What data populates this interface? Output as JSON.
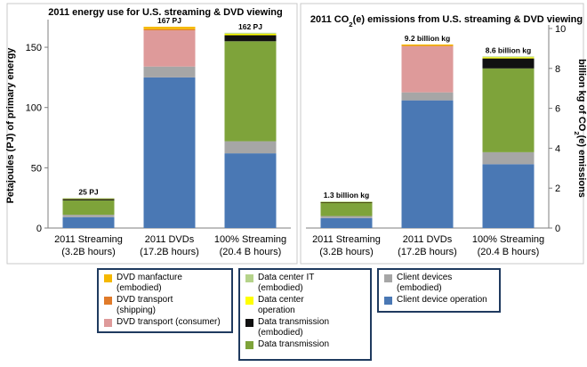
{
  "chart_data": [
    {
      "type": "bar",
      "stacked": true,
      "title": "2011 energy use for U.S. streaming & DVD viewing",
      "ylabel": "Petajoules (PJ) of primary energy",
      "ylim": [
        0,
        170
      ],
      "yticks": [
        0,
        50,
        100,
        150
      ],
      "grid": false,
      "categories": [
        "2011 Streaming\n(3.2B hours)",
        "2011 DVDs\n(17.2B hours)",
        "100% Streaming\n(20.4 B hours)"
      ],
      "totals_labels": [
        "25 PJ",
        "167 PJ",
        "162 PJ"
      ],
      "series": [
        {
          "key": "client_op",
          "values": [
            9,
            125,
            62
          ]
        },
        {
          "key": "client_emb",
          "values": [
            2,
            9,
            10
          ]
        },
        {
          "key": "data_trans",
          "values": [
            12,
            0,
            83
          ]
        },
        {
          "key": "data_trans_emb",
          "values": [
            1.2,
            0,
            5
          ]
        },
        {
          "key": "dc_op",
          "values": [
            0.4,
            0,
            1.2
          ]
        },
        {
          "key": "dc_it",
          "values": [
            0.2,
            0,
            0.8
          ]
        },
        {
          "key": "dvd_transport_consumer",
          "values": [
            0,
            30,
            0
          ]
        },
        {
          "key": "dvd_transport_shipping",
          "values": [
            0,
            1,
            0
          ]
        },
        {
          "key": "dvd_manufacture",
          "values": [
            0,
            2,
            0
          ]
        }
      ]
    },
    {
      "type": "bar",
      "stacked": true,
      "title_prefix": "2011 CO",
      "title_sub": "2",
      "title_suffix": "(e) emissions from U.S. streaming & DVD viewing",
      "ylabel_prefix": "billion kg of CO",
      "ylabel_sub": "2",
      "ylabel_suffix": "(e) emissions",
      "ylim": [
        0,
        10
      ],
      "yticks": [
        0,
        2,
        4,
        6,
        8,
        10
      ],
      "grid": false,
      "categories": [
        "2011 Streaming\n(3.2B hours)",
        "2011 DVDs\n(17.2B hours)",
        "100% Streaming\n(20.4 B hours)"
      ],
      "totals_labels": [
        "1.3 billion kg",
        "9.2 billion kg",
        "8.6 billion kg"
      ],
      "series": [
        {
          "key": "client_op",
          "values": [
            0.5,
            6.4,
            3.2
          ]
        },
        {
          "key": "client_emb",
          "values": [
            0.1,
            0.4,
            0.6
          ]
        },
        {
          "key": "data_trans",
          "values": [
            0.65,
            0,
            4.2
          ]
        },
        {
          "key": "data_trans_emb",
          "values": [
            0.05,
            0,
            0.5
          ]
        },
        {
          "key": "dc_op",
          "values": [
            0.02,
            0,
            0.06
          ]
        },
        {
          "key": "dc_it",
          "values": [
            0.01,
            0,
            0.04
          ]
        },
        {
          "key": "dvd_transport_consumer",
          "values": [
            0,
            2.3,
            0
          ]
        },
        {
          "key": "dvd_transport_shipping",
          "values": [
            0,
            0.04,
            0
          ]
        },
        {
          "key": "dvd_manufacture",
          "values": [
            0,
            0.06,
            0
          ]
        }
      ]
    }
  ],
  "series_info": {
    "dvd_manufacture": {
      "label": "DVD manfacture\n(embodied)",
      "color": "#f5b800"
    },
    "dvd_transport_shipping": {
      "label": "DVD transport\n(shipping)",
      "color": "#e07b2a"
    },
    "dvd_transport_consumer": {
      "label": "DVD transport  (consumer)",
      "color": "#de9a9a"
    },
    "dc_it": {
      "label": "Data center IT\n(embodied)",
      "color": "#b5d38a"
    },
    "dc_op": {
      "label": "Data center\noperation",
      "color": "#ffff00"
    },
    "data_trans_emb": {
      "label": "Data transmission\n(embodied)",
      "color": "#111111"
    },
    "data_trans": {
      "label": "Data transmission",
      "color": "#7ea33a"
    },
    "client_emb": {
      "label": "Client devices\n(embodied)",
      "color": "#a6a6a6"
    },
    "client_op": {
      "label": "Client device operation",
      "color": "#4a78b4"
    }
  },
  "legend_groups": [
    [
      "dvd_manufacture",
      "dvd_transport_shipping",
      "dvd_transport_consumer"
    ],
    [
      "dc_it",
      "dc_op",
      "data_trans_emb",
      "data_trans"
    ],
    [
      "client_emb",
      "client_op"
    ]
  ]
}
